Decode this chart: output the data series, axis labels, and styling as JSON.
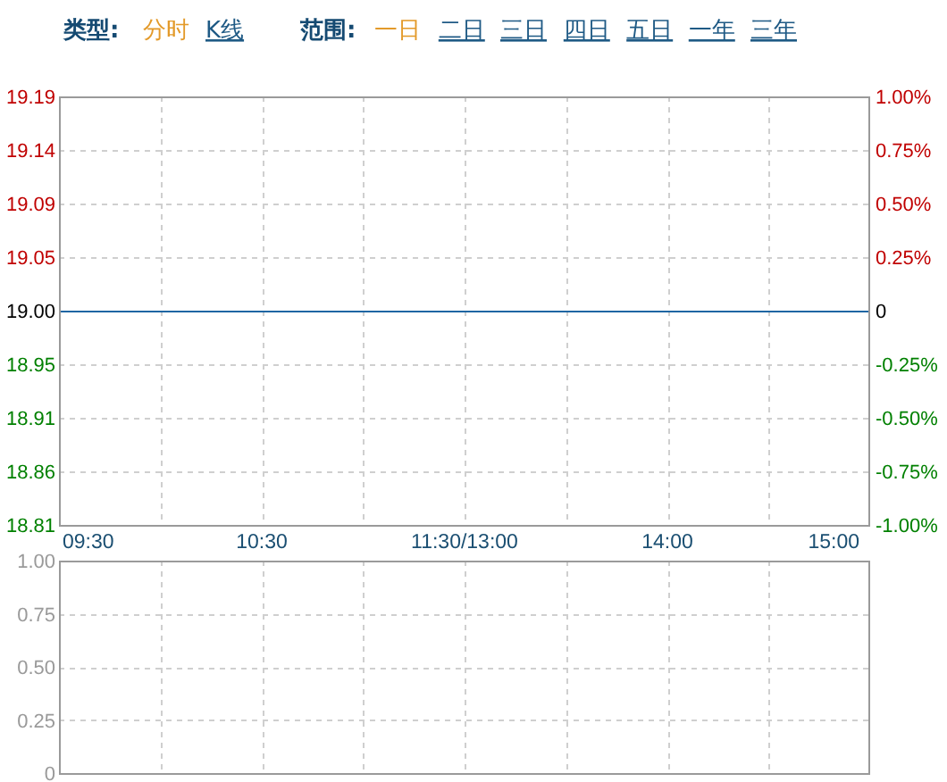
{
  "chart_data": [
    {
      "type": "line",
      "annotations": [
        "类型:",
        "分时",
        "K线",
        "范围:",
        "一日",
        "二日",
        "三日",
        "四日",
        "五日",
        "一年",
        "三年"
      ],
      "categories": [
        "09:30",
        null,
        "10:30",
        null,
        "11:30/13:00",
        null,
        "14:00",
        null,
        "15:00"
      ],
      "series": [
        {
          "color": "#1f66a3",
          "values": [
            19,
            19,
            19,
            19,
            19,
            19,
            19,
            19,
            19
          ]
        }
      ],
      "ylim": [
        18.81,
        19.19
      ],
      "yticks": [
        18.81,
        {
          "value": 18.8575,
          "label": "18.86"
        },
        {
          "value": 18.905,
          "label": "18.91"
        },
        {
          "value": 18.9525,
          "label": "18.95"
        },
        {
          "value": 19,
          "label": "19.00"
        },
        {
          "value": 19.0475,
          "label": "19.05"
        },
        {
          "value": 19.095,
          "label": "19.09"
        },
        {
          "value": 19.1425,
          "label": "19.14"
        },
        19.19
      ],
      "y2lim": [
        -1,
        1
      ],
      "y2ticks": [
        {
          "value": -1,
          "label": "-1.00%"
        },
        {
          "value": -0.75,
          "label": "-0.75%"
        },
        {
          "value": -0.5,
          "label": "-0.50%"
        },
        {
          "value": -0.25,
          "label": "-0.25%"
        },
        0,
        {
          "value": 0.25,
          "label": "0.25%"
        },
        {
          "value": 0.5,
          "label": "0.50%"
        },
        {
          "value": 0.75,
          "label": "0.75%"
        },
        {
          "value": 1,
          "label": "1.00%"
        }
      ],
      "grid": true
    },
    {
      "type": "bar",
      "categories": [
        null,
        null,
        null,
        null,
        null,
        null,
        null,
        null,
        null
      ],
      "ylim": [
        0,
        1
      ],
      "yticks": [
        0,
        0.25,
        {
          "value": 0.5,
          "label": "0.50"
        },
        0.75,
        {
          "value": 1,
          "label": "1.00"
        }
      ],
      "grid": true,
      "tick_labels": "y"
    }
  ]
}
